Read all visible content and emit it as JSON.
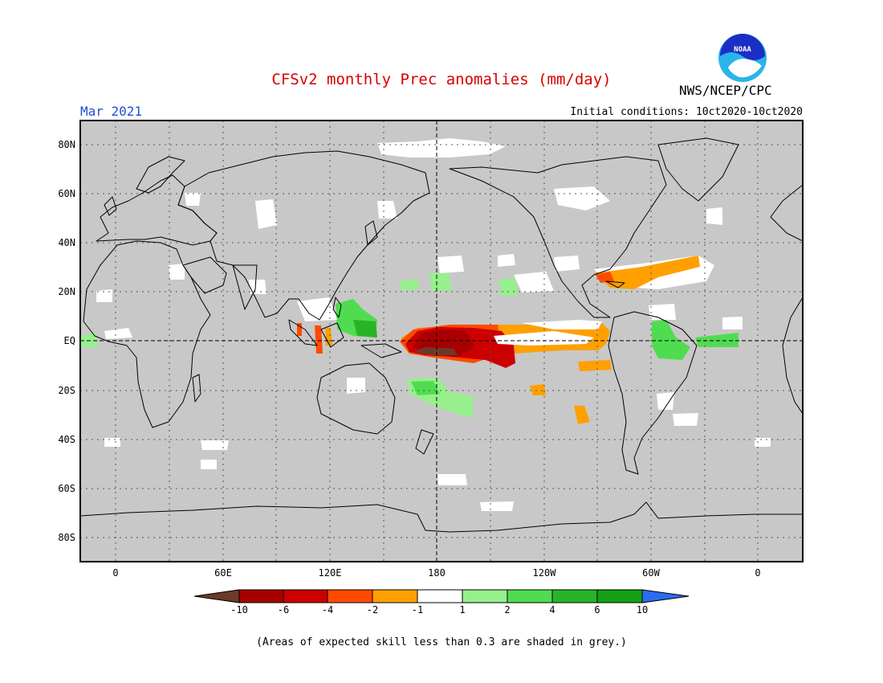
{
  "title": "CFSv2 monthly Prec anomalies (mm/day)",
  "month": "Mar 2021",
  "initial_conditions": "Initial conditions: 10ct2020-10ct2020",
  "agency": "NWS/NCEP/CPC",
  "logo_text": "NOAA",
  "footnote": "(Areas of expected skill less than 0.3 are shaded in grey.)",
  "map": {
    "projection": "equirectangular",
    "background_color": "#c8c8c8",
    "lat_labels": [
      "80N",
      "60N",
      "40N",
      "20N",
      "EQ",
      "20S",
      "40S",
      "60S",
      "80S"
    ],
    "lon_labels": [
      "0",
      "60E",
      "120E",
      "180",
      "120W",
      "60W",
      "0"
    ],
    "grid": "dotted"
  },
  "colorbar": {
    "labels": [
      "-10",
      "-6",
      "-4",
      "-2",
      "-1",
      "1",
      "2",
      "4",
      "6",
      "10"
    ],
    "colors": [
      "#6b3a2a",
      "#a80000",
      "#cc0000",
      "#ff4a00",
      "#ffa000",
      "#ffffff",
      "#96f08c",
      "#50dc50",
      "#28b428",
      "#14a014",
      "#2b6cf0"
    ]
  }
}
